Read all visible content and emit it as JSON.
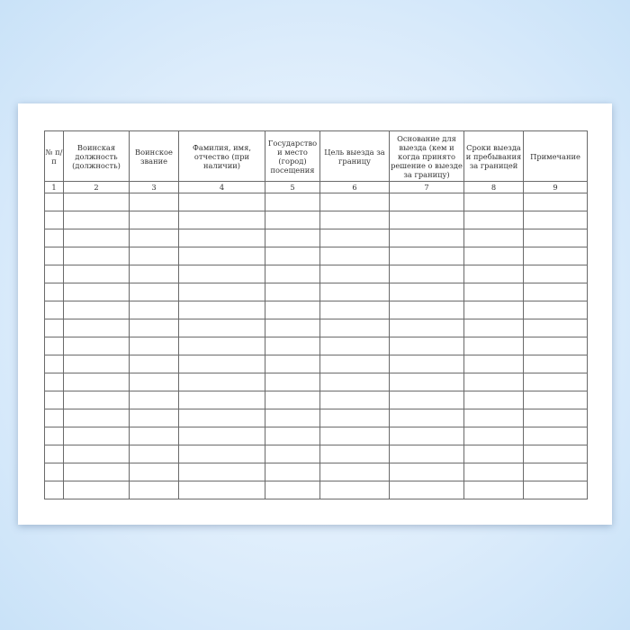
{
  "table": {
    "headers": [
      "№ п/п",
      "Воинская должность (должность)",
      "Воинское звание",
      "Фамилия, имя, отчество (при наличии)",
      "Государство и место (город) посещения",
      "Цель выезда за границу",
      "Основание для выезда (кем и когда принято решение о выезде за границу)",
      "Сроки выезда и пребывания за границей",
      "Примечание"
    ],
    "column_numbers": [
      "1",
      "2",
      "3",
      "4",
      "5",
      "6",
      "7",
      "8",
      "9"
    ],
    "empty_rows": 17
  }
}
